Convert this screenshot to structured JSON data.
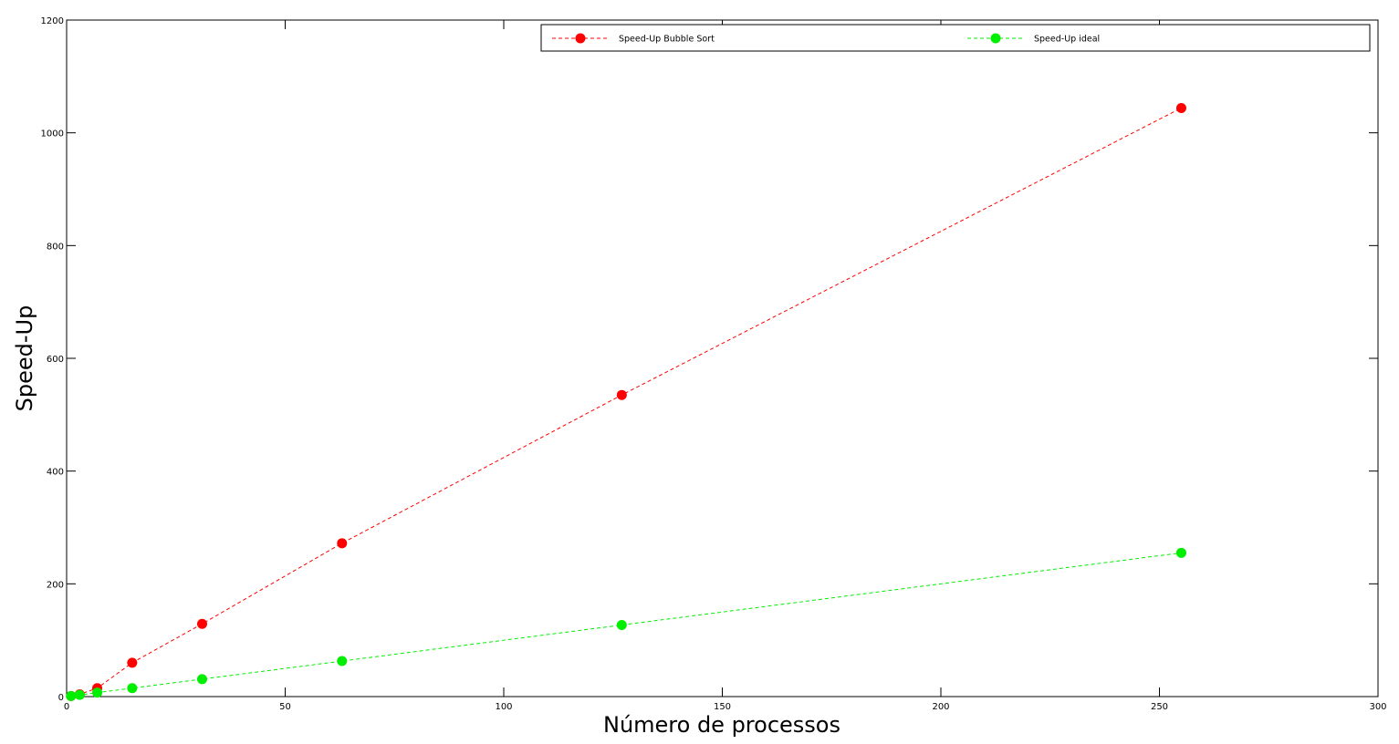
{
  "chart_data": {
    "type": "line",
    "title": "",
    "xlabel": "Número de processos",
    "ylabel": "Speed-Up",
    "xlim": [
      0,
      300
    ],
    "ylim": [
      0,
      1200
    ],
    "xticks": [
      0,
      50,
      100,
      150,
      200,
      250,
      300
    ],
    "yticks": [
      0,
      200,
      400,
      600,
      800,
      1000,
      1200
    ],
    "grid": false,
    "legend_position": "top",
    "series": [
      {
        "name": "Speed-Up Bubble Sort",
        "color": "#ff0000",
        "line_style": "dashed",
        "marker": "circle",
        "x": [
          1,
          3,
          7,
          15,
          31,
          63,
          127,
          255
        ],
        "y": [
          1,
          4,
          15,
          60,
          129,
          272,
          535,
          1044
        ]
      },
      {
        "name": "Speed-Up ideal",
        "color": "#00ee00",
        "line_style": "dashed",
        "marker": "circle",
        "x": [
          1,
          3,
          7,
          15,
          31,
          63,
          127,
          255
        ],
        "y": [
          1,
          3,
          7,
          15,
          31,
          63,
          127,
          255
        ]
      }
    ]
  }
}
